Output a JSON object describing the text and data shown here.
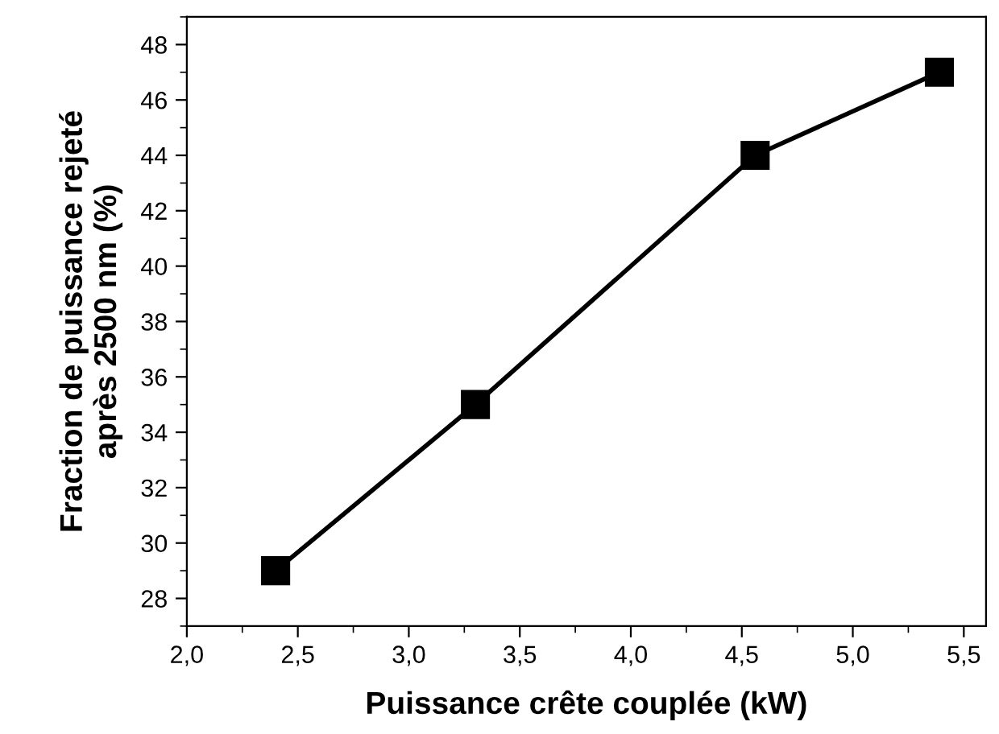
{
  "chart_data": {
    "type": "line",
    "xlabel": "Puissance crête couplée (kW)",
    "ylabel": "Fraction de puissance rejeté\naprès 2500 nm (%)",
    "x": [
      2.4,
      3.3,
      4.56,
      5.39
    ],
    "series": [
      {
        "color": "#000000",
        "values": [
          29,
          35,
          44,
          47
        ]
      }
    ],
    "marker": "square",
    "line_style": "solid",
    "grid": false,
    "legend": false,
    "xlim": [
      2.0,
      5.6
    ],
    "ylim": [
      27,
      49
    ],
    "xticks": [
      {
        "value": 2.0,
        "label": "2,0"
      },
      {
        "value": 2.5,
        "label": "2,5"
      },
      {
        "value": 3.0,
        "label": "3,0"
      },
      {
        "value": 3.5,
        "label": "3,5"
      },
      {
        "value": 4.0,
        "label": "4,0"
      },
      {
        "value": 4.5,
        "label": "4,5"
      },
      {
        "value": 5.0,
        "label": "5,0"
      },
      {
        "value": 5.5,
        "label": "5,5"
      }
    ],
    "yticks": [
      28,
      30,
      32,
      34,
      36,
      38,
      40,
      42,
      44,
      46,
      48
    ]
  }
}
